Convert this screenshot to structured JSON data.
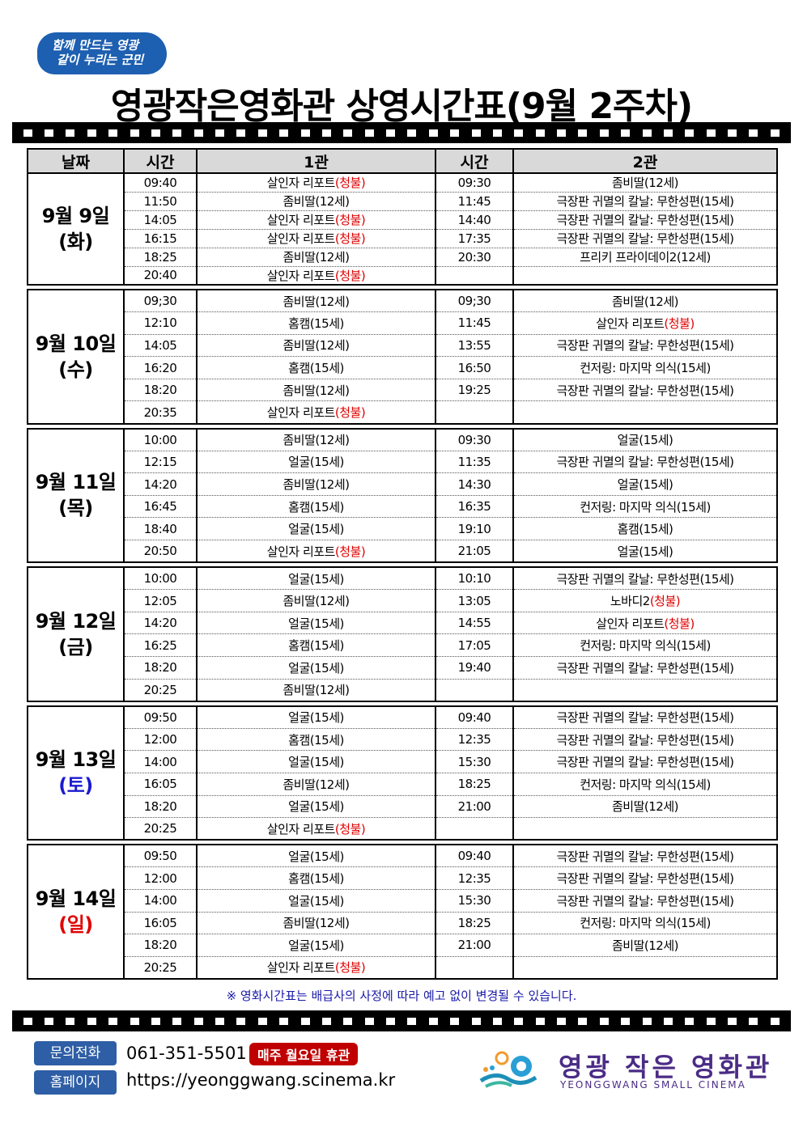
{
  "slogan": [
    "함께 만드는 영광",
    "같이 누리는 군민"
  ],
  "title": "영광작은영화관 상영시간표(9월 2주차)",
  "headers": {
    "date": "날짜",
    "time1": "시간",
    "hall1": "1관",
    "time2": "시간",
    "hall2": "2관"
  },
  "colors": {
    "restricted": "#e00000",
    "saturday": "#1a1ad0",
    "sunday": "#e00000",
    "header_bg": "#d9d9d9"
  },
  "days": [
    {
      "date": "9월 9일",
      "weekday": "(화)",
      "rows": [
        [
          "09:40",
          "살인자 리포트",
          "(청불)",
          "09:30",
          "좀비딸",
          "(12세)"
        ],
        [
          "11:50",
          "좀비딸",
          "(12세)",
          "11:45",
          "극장판 귀멸의 칼날: 무한성편",
          "(15세)"
        ],
        [
          "14:05",
          "살인자 리포트",
          "(청불)",
          "14:40",
          "극장판 귀멸의 칼날: 무한성편",
          "(15세)"
        ],
        [
          "16:15",
          "살인자 리포트",
          "(청불)",
          "17:35",
          "극장판 귀멸의 칼날: 무한성편",
          "(15세)"
        ],
        [
          "18:25",
          "좀비딸",
          "(12세)",
          "20:30",
          "프리키 프라이데이2",
          "(12세)"
        ],
        [
          "20:40",
          "살인자 리포트",
          "(청불)",
          "",
          "",
          ""
        ]
      ]
    },
    {
      "date": "9월 10일",
      "weekday": "(수)",
      "rows": [
        [
          "09;30",
          "좀비딸",
          "(12세)",
          "09;30",
          "좀비딸",
          "(12세)"
        ],
        [
          "12:10",
          "홈캠",
          "(15세)",
          "11:45",
          "살인자 리포트",
          "(청불)"
        ],
        [
          "14:05",
          "좀비딸",
          "(12세)",
          "13:55",
          "극장판 귀멸의 칼날: 무한성편",
          "(15세)"
        ],
        [
          "16:20",
          "홈캠",
          "(15세)",
          "16:50",
          "컨저링: 마지막 의식",
          "(15세)"
        ],
        [
          "18:20",
          "좀비딸",
          "(12세)",
          "19:25",
          "극장판 귀멸의 칼날: 무한성편",
          "(15세)"
        ],
        [
          "20:35",
          "살인자 리포트",
          "(청불)",
          "",
          "",
          ""
        ]
      ]
    },
    {
      "date": "9월 11일",
      "weekday": "(목)",
      "rows": [
        [
          "10:00",
          "좀비딸",
          "(12세)",
          "09:30",
          "얼굴",
          "(15세)"
        ],
        [
          "12:15",
          "얼굴",
          "(15세)",
          "11:35",
          "극장판 귀멸의 칼날: 무한성편",
          "(15세)"
        ],
        [
          "14:20",
          "좀비딸",
          "(12세)",
          "14:30",
          "얼굴",
          "(15세)"
        ],
        [
          "16:45",
          "홈캠",
          "(15세)",
          "16:35",
          "컨저링: 마지막 의식",
          "(15세)"
        ],
        [
          "18:40",
          "얼굴",
          "(15세)",
          "19:10",
          "홈캠",
          "(15세)"
        ],
        [
          "20:50",
          "살인자 리포트",
          "(청불)",
          "21:05",
          "얼굴",
          "(15세)"
        ]
      ]
    },
    {
      "date": "9월 12일",
      "weekday": "(금)",
      "rows": [
        [
          "10:00",
          "얼굴",
          "(15세)",
          "10:10",
          "극장판 귀멸의 칼날: 무한성편",
          "(15세)"
        ],
        [
          "12:05",
          "좀비딸",
          "(12세)",
          "13:05",
          "노바디2",
          "(청불)"
        ],
        [
          "14:20",
          "얼굴",
          "(15세)",
          "14:55",
          "살인자 리포트",
          "(청불)"
        ],
        [
          "16:25",
          "홈캠",
          "(15세)",
          "17:05",
          "컨저링: 마지막 의식",
          "(15세)"
        ],
        [
          "18:20",
          "얼굴",
          "(15세)",
          "19:40",
          "극장판 귀멸의 칼날: 무한성편",
          "(15세)"
        ],
        [
          "20:25",
          "좀비딸",
          "(12세)",
          "",
          "",
          ""
        ]
      ]
    },
    {
      "date": "9월 13일",
      "weekday": "(토)",
      "weekday_color": "saturday",
      "rows": [
        [
          "09:50",
          "얼굴",
          "(15세)",
          "09:40",
          "극장판 귀멸의 칼날: 무한성편",
          "(15세)"
        ],
        [
          "12:00",
          "홈캠",
          "(15세)",
          "12:35",
          "극장판 귀멸의 칼날: 무한성편",
          "(15세)"
        ],
        [
          "14:00",
          "얼굴",
          "(15세)",
          "15:30",
          "극장판 귀멸의 칼날: 무한성편",
          "(15세)"
        ],
        [
          "16:05",
          "좀비딸",
          "(12세)",
          "18:25",
          "컨저링: 마지막 의식",
          "(15세)"
        ],
        [
          "18:20",
          "얼굴",
          "(15세)",
          "21:00",
          "좀비딸",
          "(12세)"
        ],
        [
          "20:25",
          "살인자 리포트",
          "(청불)",
          "",
          "",
          ""
        ]
      ]
    },
    {
      "date": "9월 14일",
      "weekday": "(일)",
      "weekday_color": "sunday",
      "rows": [
        [
          "09:50",
          "얼굴",
          "(15세)",
          "09:40",
          "극장판 귀멸의 칼날: 무한성편",
          "(15세)"
        ],
        [
          "12:00",
          "홈캠",
          "(15세)",
          "12:35",
          "극장판 귀멸의 칼날: 무한성편",
          "(15세)"
        ],
        [
          "14:00",
          "얼굴",
          "(15세)",
          "15:30",
          "극장판 귀멸의 칼날: 무한성편",
          "(15세)"
        ],
        [
          "16:05",
          "좀비딸",
          "(12세)",
          "18:25",
          "컨저링: 마지막 의식",
          "(15세)"
        ],
        [
          "18:20",
          "얼굴",
          "(15세)",
          "21:00",
          "좀비딸",
          "(12세)"
        ],
        [
          "20:25",
          "살인자 리포트",
          "(청불)",
          "",
          "",
          ""
        ]
      ]
    }
  ],
  "note": "※ 영화시간표는 배급사의 사정에 따라 예고 없이 변경될 수 있습니다.",
  "footer": {
    "phone_label": "문의전화",
    "phone": "061-351-5501",
    "closed": "매주 월요일 휴관",
    "homepage_label": "홈페이지",
    "homepage": "https://yeonggwang.scinema.kr"
  },
  "logo": {
    "name_kr": "영광 작은 영화관",
    "name_en": "YEONGGWANG SMALL CINEMA"
  }
}
